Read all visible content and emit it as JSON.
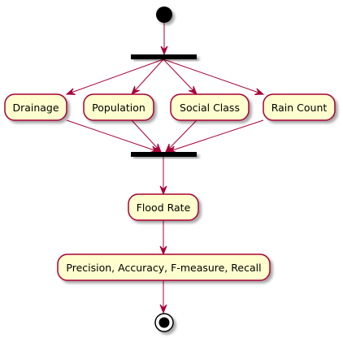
{
  "diagram": {
    "type": "uml-activity",
    "colors": {
      "arrow": "#A80036",
      "node_fill": "#FEFECE",
      "node_border": "#A80036",
      "bar": "#000000",
      "start": "#000000",
      "shadow": "#C8C8C8"
    },
    "nodes": {
      "start": "start",
      "fork": "fork",
      "drainage": "Drainage",
      "population": "Population",
      "social_class": "Social Class",
      "rain_count": "Rain Count",
      "join": "join",
      "flood_rate": "Flood Rate",
      "metrics": "Precision, Accuracy, F-measure, Recall",
      "end": "end"
    },
    "edges": [
      [
        "start",
        "fork"
      ],
      [
        "fork",
        "drainage"
      ],
      [
        "fork",
        "population"
      ],
      [
        "fork",
        "social_class"
      ],
      [
        "fork",
        "rain_count"
      ],
      [
        "drainage",
        "join"
      ],
      [
        "population",
        "join"
      ],
      [
        "social_class",
        "join"
      ],
      [
        "rain_count",
        "join"
      ],
      [
        "join",
        "flood_rate"
      ],
      [
        "flood_rate",
        "metrics"
      ],
      [
        "metrics",
        "end"
      ]
    ]
  }
}
